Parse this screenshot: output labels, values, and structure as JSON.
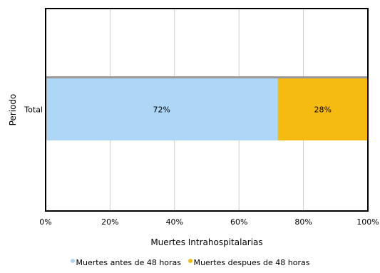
{
  "chart_data": {
    "type": "bar",
    "orientation": "horizontal",
    "stacked": true,
    "categories": [
      "Total"
    ],
    "series": [
      {
        "name": "Muertes antes de 48 horas",
        "values": [
          72
        ],
        "label": "72%",
        "color": "#aed6f7"
      },
      {
        "name": "Muertes despues de 48 horas",
        "values": [
          28
        ],
        "label": "28%",
        "color": "#f5bb10"
      }
    ],
    "xlabel": "Muertes Intrahospitalarias",
    "ylabel": "Periodo",
    "xlim": [
      0,
      100
    ],
    "xticks": [
      "0%",
      "20%",
      "40%",
      "60%",
      "80%",
      "100%"
    ],
    "grid": "vertical",
    "legend_position": "bottom"
  }
}
